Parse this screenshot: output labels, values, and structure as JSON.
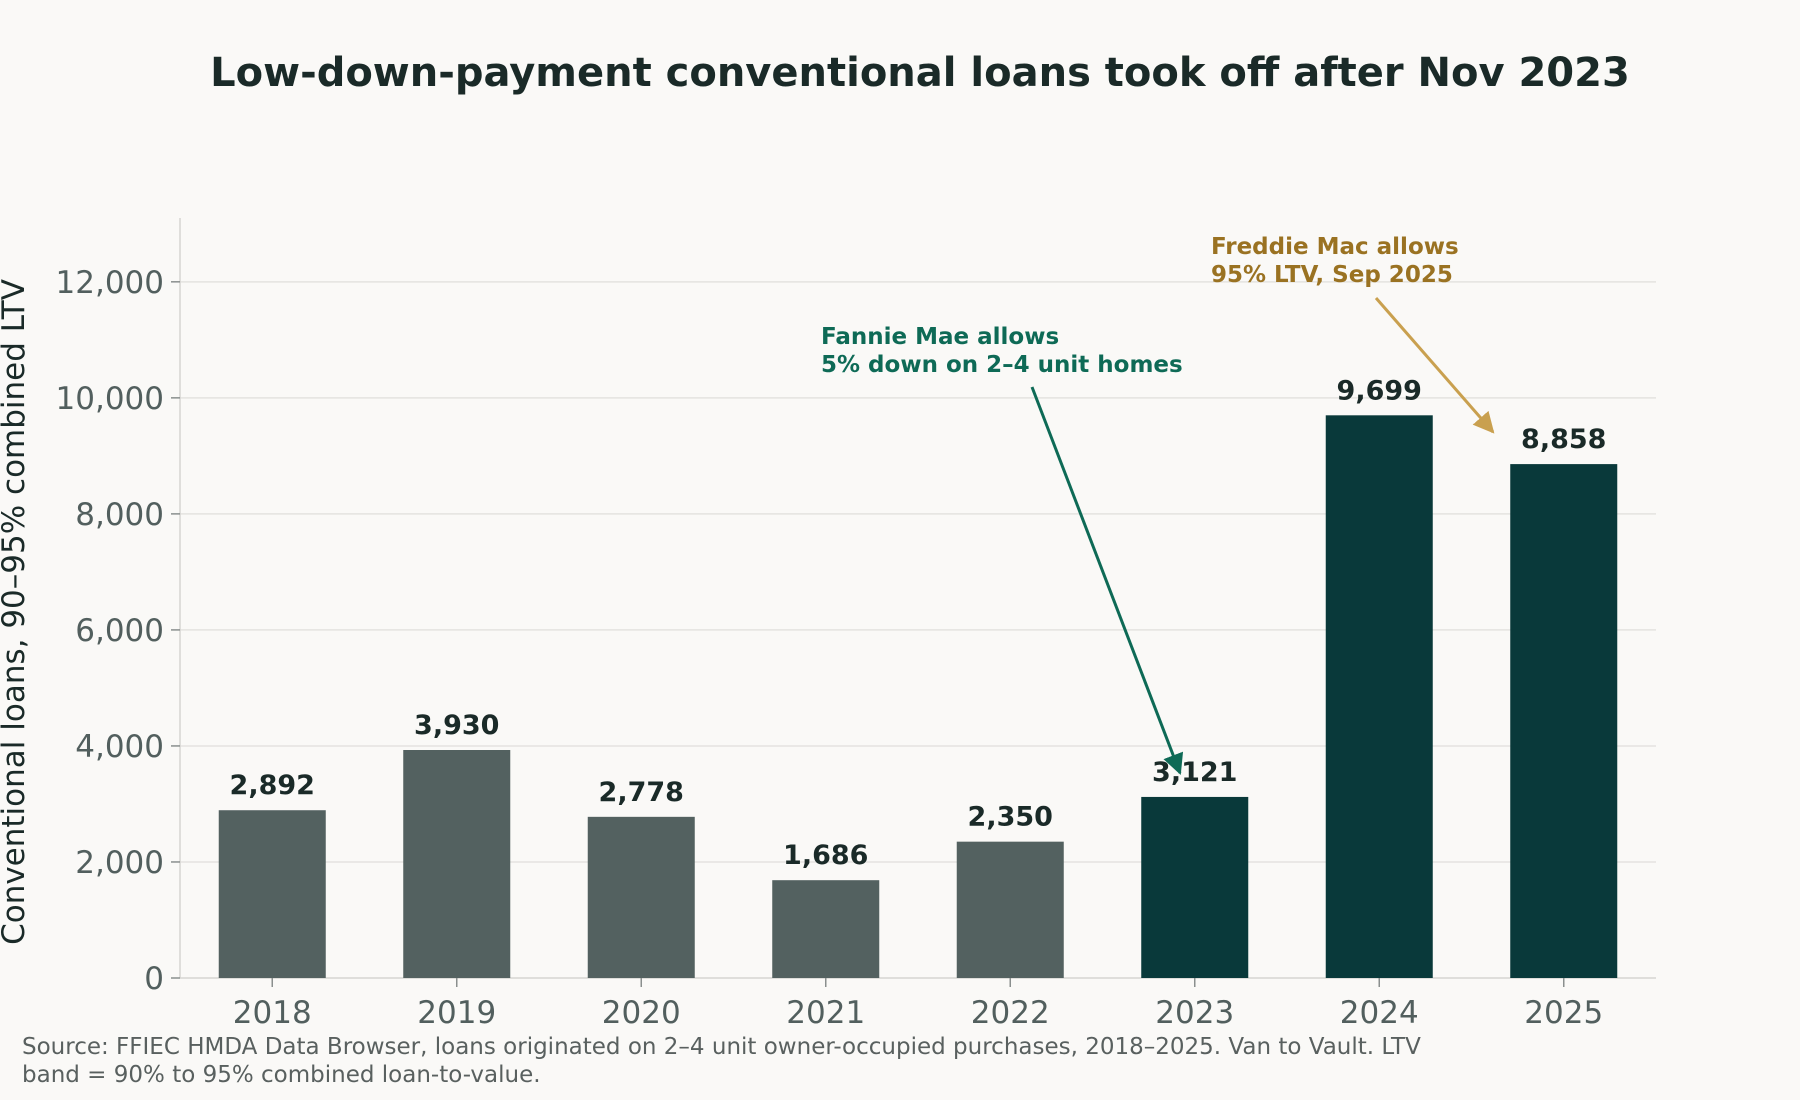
{
  "colors": {
    "background": "#faf9f7",
    "bar_before": "#536160",
    "bar_after": "#09393a",
    "grid": "#e4e3e0",
    "text_dark": "#1a2a28",
    "tick_text": "#525f5e",
    "annotation_fannie": "#0e6a56",
    "annotation_freddie": "#9a7222",
    "arrow_freddie": "#c9a04f"
  },
  "chart_data": {
    "type": "bar",
    "title": "Low-down-payment conventional loans took off after Nov 2023",
    "xlabel": "",
    "ylabel": "Conventional loans, 90–95% combined LTV",
    "categories": [
      "2018",
      "2019",
      "2020",
      "2021",
      "2022",
      "2023",
      "2024",
      "2025"
    ],
    "values": [
      2892,
      3930,
      2778,
      1686,
      2350,
      3121,
      9699,
      8858
    ],
    "value_labels": [
      "2,892",
      "3,930",
      "2,778",
      "1,686",
      "2,350",
      "3,121",
      "9,699",
      "8,858"
    ],
    "highlight_from_category": "2023",
    "ylim": [
      0,
      13100
    ],
    "yticks": [
      0,
      2000,
      4000,
      6000,
      8000,
      10000,
      12000
    ],
    "ytick_labels": [
      "0",
      "2,000",
      "4,000",
      "6,000",
      "8,000",
      "10,000",
      "12,000"
    ],
    "grid": true,
    "legend": "none",
    "annotations": [
      {
        "lines": [
          "Fannie Mae allows",
          "5% down on 2–4 unit homes"
        ],
        "target_category": "2023",
        "color": "#0e6a56"
      },
      {
        "lines": [
          "Freddie Mac allows",
          "95% LTV, Sep 2025"
        ],
        "target_category": "2025",
        "color": "#9a7222"
      }
    ],
    "source_note": [
      "Source: FFIEC HMDA Data Browser, loans originated on 2–4 unit owner-occupied purchases, 2018–2025. Van to Vault. LTV",
      "band = 90% to 95% combined loan-to-value."
    ]
  }
}
